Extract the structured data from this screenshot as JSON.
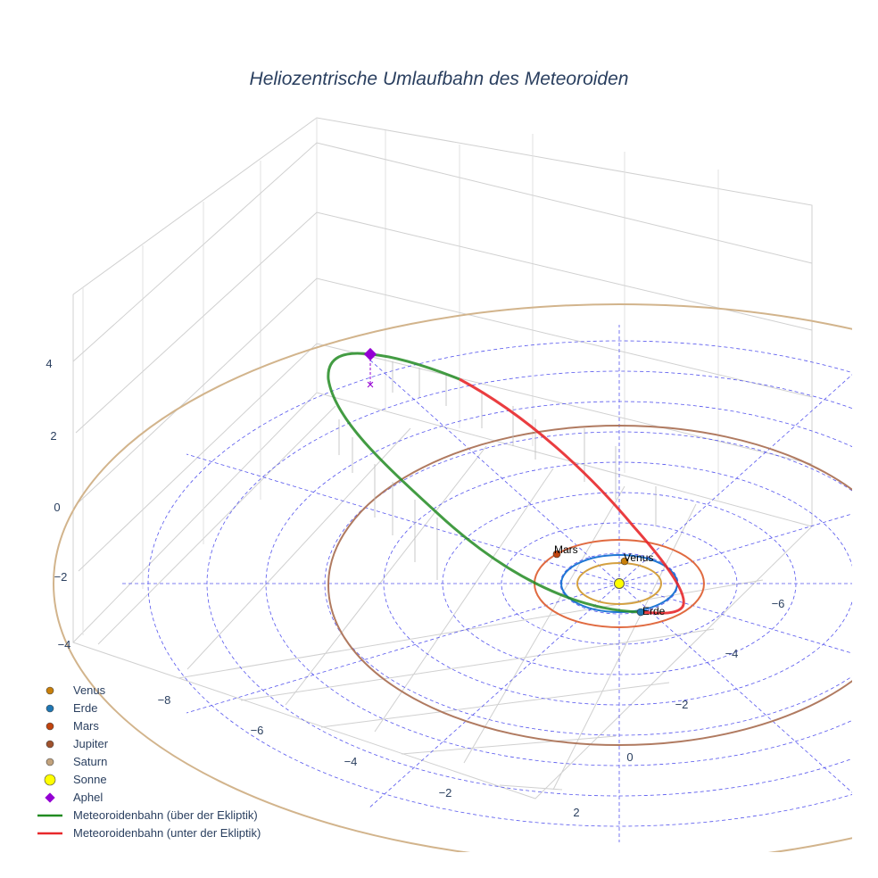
{
  "chart_data": {
    "type": "scatter3d",
    "title": "Heliozentrische Umlaufbahn des Meteoroiden",
    "axes": {
      "x": {
        "ticks": [
          "−8",
          "−6",
          "−4",
          "−2",
          "2"
        ]
      },
      "y": {
        "ticks": [
          "−6",
          "−4",
          "−2",
          "0"
        ]
      },
      "z": {
        "ticks": [
          "4",
          "2",
          "0",
          "−2",
          "−4"
        ]
      }
    },
    "orbits_au": [
      {
        "name": "Venus",
        "a": 0.72,
        "color": "#d4a040"
      },
      {
        "name": "Erde",
        "a": 1.0,
        "color": "#1f77d4"
      },
      {
        "name": "Mars",
        "a": 1.52,
        "color": "#e06a40"
      },
      {
        "name": "Jupiter",
        "a": 5.2,
        "color": "#b07a60"
      },
      {
        "name": "Saturn",
        "a": 9.54,
        "color": "#d2b48c"
      }
    ],
    "point_labels": [
      "Mars",
      "Venus",
      "Erde"
    ],
    "legend": [
      {
        "label": "Venus",
        "symbol": "circle",
        "color": "#c87f0a"
      },
      {
        "label": "Erde",
        "symbol": "circle",
        "color": "#1f77b4"
      },
      {
        "label": "Mars",
        "symbol": "circle",
        "color": "#c1440e"
      },
      {
        "label": "Jupiter",
        "symbol": "circle",
        "color": "#a0522d"
      },
      {
        "label": "Saturn",
        "symbol": "circle",
        "color": "#c2a27c"
      },
      {
        "label": "Sonne",
        "symbol": "circle-big",
        "color": "#ffff00"
      },
      {
        "label": "Aphel",
        "symbol": "diamond",
        "color": "#9400d3"
      },
      {
        "label": "Meteoroidenbahn (über der Ekliptik)",
        "symbol": "line",
        "color": "#228b22"
      },
      {
        "label": "Meteoroidenbahn (unter der Ekliptik)",
        "symbol": "line",
        "color": "#e8282b"
      }
    ],
    "legend_position": "bottom-left"
  }
}
